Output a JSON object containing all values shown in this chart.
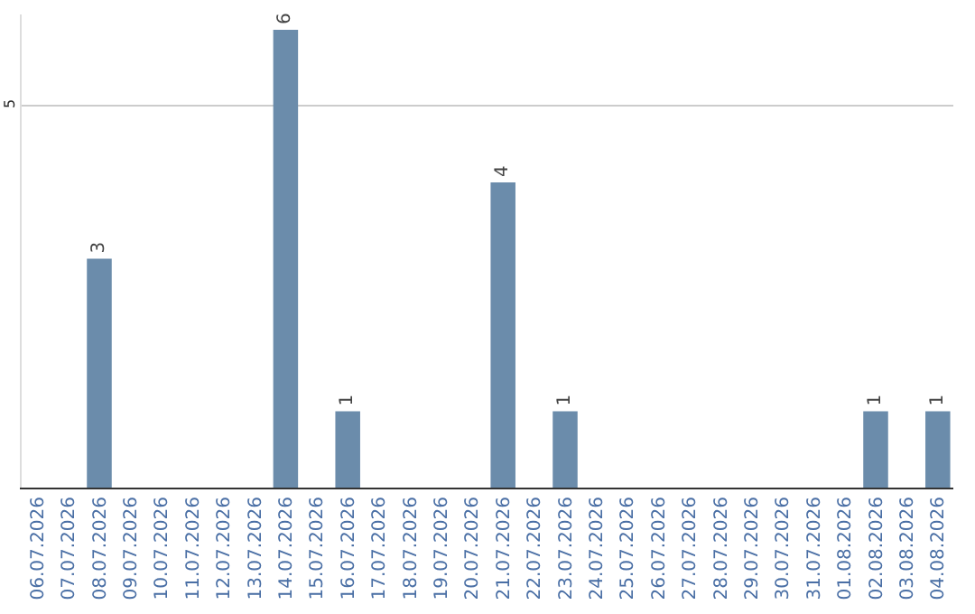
{
  "chart_data": {
    "type": "bar",
    "categories": [
      "06.07.2026",
      "07.07.2026",
      "08.07.2026",
      "09.07.2026",
      "10.07.2026",
      "11.07.2026",
      "12.07.2026",
      "13.07.2026",
      "14.07.2026",
      "15.07.2026",
      "16.07.2026",
      "17.07.2026",
      "18.07.2026",
      "19.07.2026",
      "20.07.2026",
      "21.07.2026",
      "22.07.2026",
      "23.07.2026",
      "24.07.2026",
      "25.07.2026",
      "26.07.2026",
      "27.07.2026",
      "28.07.2026",
      "29.07.2026",
      "30.07.2026",
      "31.07.2026",
      "01.08.2026",
      "02.08.2026",
      "03.08.2026",
      "04.08.2026"
    ],
    "values": [
      0,
      0,
      3,
      0,
      0,
      0,
      0,
      0,
      6,
      0,
      1,
      0,
      0,
      0,
      0,
      4,
      0,
      1,
      0,
      0,
      0,
      0,
      0,
      0,
      0,
      0,
      0,
      1,
      0,
      1
    ],
    "value_labels": [
      null,
      null,
      "3",
      null,
      null,
      null,
      null,
      null,
      "6",
      null,
      "1",
      null,
      null,
      null,
      null,
      "4",
      null,
      "1",
      null,
      null,
      null,
      null,
      null,
      null,
      null,
      null,
      null,
      "1",
      null,
      "1"
    ],
    "color": "#6b8cab",
    "ylim": [
      0,
      6.2
    ],
    "yticks": [
      5
    ],
    "grid": "y"
  }
}
